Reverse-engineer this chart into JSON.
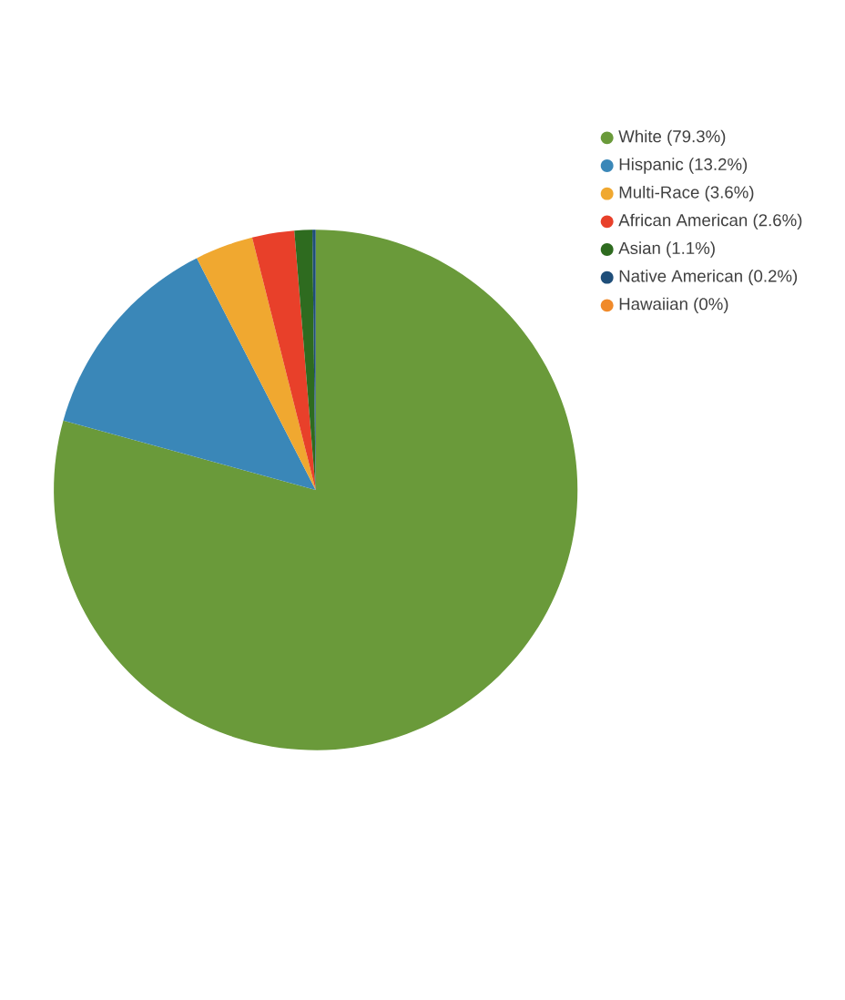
{
  "chart_data": {
    "type": "pie",
    "categories": [
      "White (79.3%)",
      "Hispanic (13.2%)",
      "Multi-Race (3.6%)",
      "African American (2.6%)",
      "Asian (1.1%)",
      "Native American (0.2%)",
      "Hawaiian (0%)"
    ],
    "values": [
      79.3,
      13.2,
      3.6,
      2.6,
      1.1,
      0.2,
      0
    ],
    "colors": [
      "#6a9a3a",
      "#3a87b8",
      "#f0a830",
      "#e8402a",
      "#2e6b1f",
      "#1f4e79",
      "#f08a2a"
    ],
    "legend": "top right"
  }
}
